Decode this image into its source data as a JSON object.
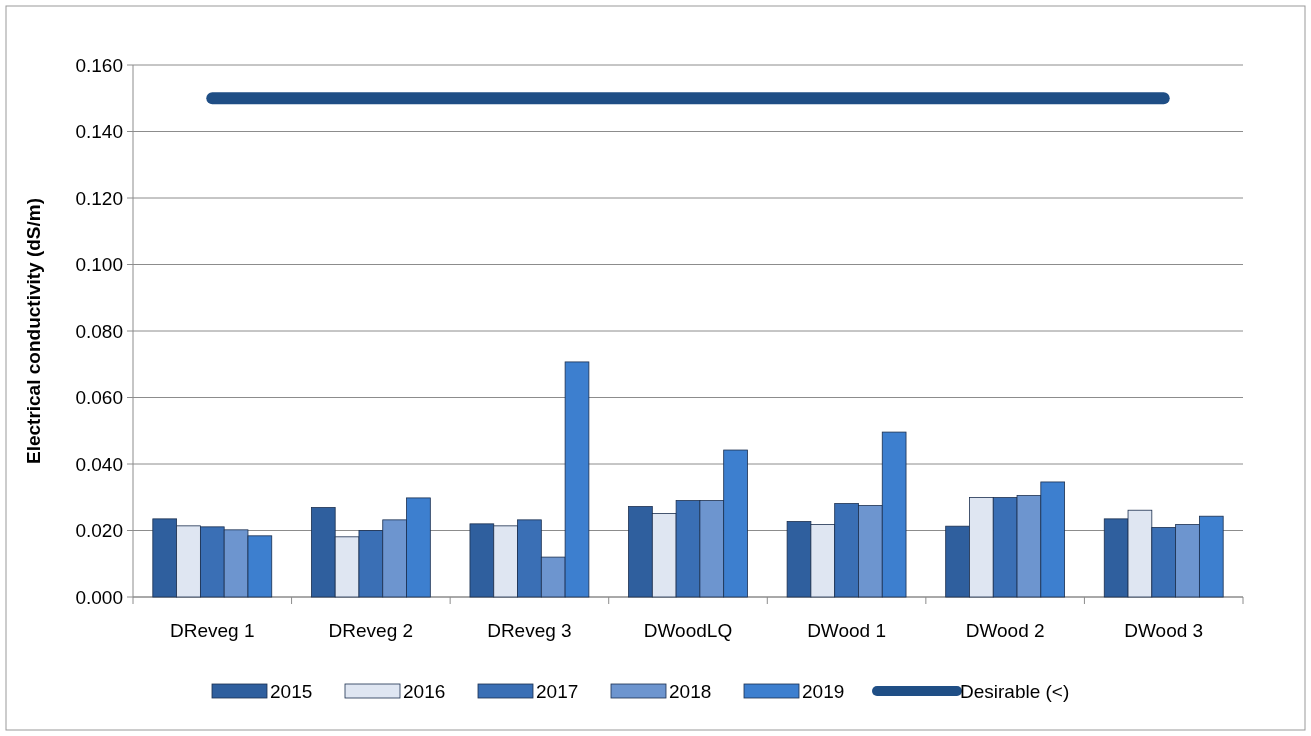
{
  "chart_data": {
    "type": "bar",
    "ylabel": "Electrical conductivity (dS/m)",
    "categories": [
      "DReveg 1",
      "DReveg 2",
      "DReveg 3",
      "DWoodLQ",
      "DWood 1",
      "DWood 2",
      "DWood 3"
    ],
    "series": [
      {
        "name": "2015",
        "color": "#2f5f9e",
        "values": [
          0.0235,
          0.0269,
          0.022,
          0.0272,
          0.0227,
          0.0213,
          0.0235
        ]
      },
      {
        "name": "2016",
        "color": "#dfe6f2",
        "values": [
          0.0214,
          0.0181,
          0.0214,
          0.0251,
          0.0218,
          0.0299,
          0.0261
        ]
      },
      {
        "name": "2017",
        "color": "#3a6fb5",
        "values": [
          0.0211,
          0.02,
          0.0232,
          0.029,
          0.0281,
          0.0299,
          0.0209
        ]
      },
      {
        "name": "2018",
        "color": "#6d95cf",
        "values": [
          0.0202,
          0.0232,
          0.012,
          0.029,
          0.0275,
          0.0305,
          0.0218
        ]
      },
      {
        "name": "2019",
        "color": "#3d7fcf",
        "values": [
          0.0184,
          0.0298,
          0.0707,
          0.0442,
          0.0496,
          0.0346,
          0.0243
        ]
      },
      {
        "name": "Desirable (<)",
        "type": "line",
        "color": "#1f4e85",
        "values": [
          0.15,
          0.15,
          0.15,
          0.15,
          0.15,
          0.15,
          0.15
        ]
      }
    ],
    "ylim": [
      0,
      0.16
    ],
    "yticks": [
      {
        "value": 0,
        "label": "0.000"
      },
      {
        "value": 0.02,
        "label": "0.020"
      },
      {
        "value": 0.04,
        "label": "0.040"
      },
      {
        "value": 0.06,
        "label": "0.060"
      },
      {
        "value": 0.08,
        "label": "0.080"
      },
      {
        "value": 0.1,
        "label": "0.100"
      },
      {
        "value": 0.12,
        "label": "0.120"
      },
      {
        "value": 0.14,
        "label": "0.140"
      },
      {
        "value": 0.16,
        "label": "0.160"
      }
    ],
    "grid": "y",
    "legend": "bottom"
  }
}
